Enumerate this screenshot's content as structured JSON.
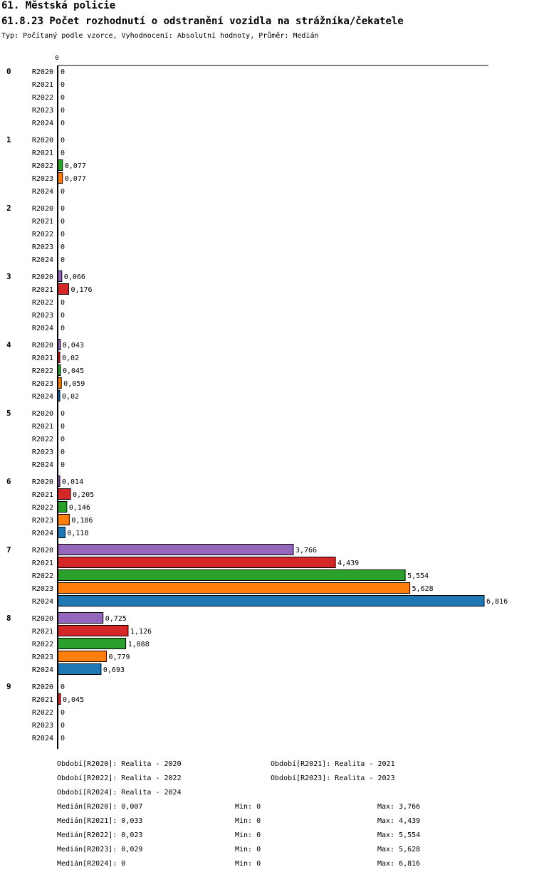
{
  "header": {
    "section": "61. Městská policie",
    "title": "61.8.23 Počet rozhodnutí o odstranění vozidla na strážníka/čekatele",
    "subtitle": "Typ: Počítaný podle vzorce, Vyhodnocení: Absolutní hodnoty, Průměr: Medián"
  },
  "colors": {
    "R2020": "#9467bd",
    "R2021": "#d62728",
    "R2022": "#2ca02c",
    "R2023": "#ff7f0e",
    "R2024": "#1f77b4"
  },
  "chart_data": {
    "type": "bar",
    "orientation": "horizontal",
    "axis_tick_label": "0",
    "xlim": [
      0,
      6.816
    ],
    "categories": [
      "0",
      "1",
      "2",
      "3",
      "4",
      "5",
      "6",
      "7",
      "8",
      "9"
    ],
    "series": [
      {
        "name": "R2020",
        "values": [
          0,
          0,
          0,
          0.066,
          0.043,
          0,
          0.014,
          3.766,
          0.725,
          0
        ],
        "labels": [
          "0",
          "0",
          "0",
          "0,066",
          "0,043",
          "0",
          "0,014",
          "3,766",
          "0,725",
          "0"
        ]
      },
      {
        "name": "R2021",
        "values": [
          0,
          0,
          0,
          0.176,
          0.02,
          0,
          0.205,
          4.439,
          1.126,
          0.045
        ],
        "labels": [
          "0",
          "0",
          "0",
          "0,176",
          "0,02",
          "0",
          "0,205",
          "4,439",
          "1,126",
          "0,045"
        ]
      },
      {
        "name": "R2022",
        "values": [
          0,
          0.077,
          0,
          0,
          0.045,
          0,
          0.146,
          5.554,
          1.088,
          0
        ],
        "labels": [
          "0",
          "0,077",
          "0",
          "0",
          "0,045",
          "0",
          "0,146",
          "5,554",
          "1,088",
          "0"
        ]
      },
      {
        "name": "R2023",
        "values": [
          0,
          0.077,
          0,
          0,
          0.059,
          0,
          0.186,
          5.628,
          0.779,
          0
        ],
        "labels": [
          "0",
          "0,077",
          "0",
          "0",
          "0,059",
          "0",
          "0,186",
          "5,628",
          "0,779",
          "0"
        ]
      },
      {
        "name": "R2024",
        "values": [
          0,
          0,
          0,
          0,
          0.02,
          0,
          0.118,
          6.816,
          0.693,
          0
        ],
        "labels": [
          "0",
          "0",
          "0",
          "0",
          "0,02",
          "0",
          "0,118",
          "6,816",
          "0,693",
          "0"
        ]
      }
    ]
  },
  "footer": {
    "periods": [
      "Období[R2020]: Realita - 2020",
      "Období[R2021]: Realita - 2021",
      "Období[R2022]: Realita - 2022",
      "Období[R2023]: Realita - 2023",
      "Období[R2024]: Realita - 2024"
    ],
    "stats": [
      {
        "median": "Medián[R2020]: 0,007",
        "min": "Min: 0",
        "max": "Max: 3,766"
      },
      {
        "median": "Medián[R2021]: 0,033",
        "min": "Min: 0",
        "max": "Max: 4,439"
      },
      {
        "median": "Medián[R2022]: 0,023",
        "min": "Min: 0",
        "max": "Max: 5,554"
      },
      {
        "median": "Medián[R2023]: 0,029",
        "min": "Min: 0",
        "max": "Max: 5,628"
      },
      {
        "median": "Medián[R2024]: 0",
        "min": "Min: 0",
        "max": "Max: 6,816"
      }
    ]
  }
}
